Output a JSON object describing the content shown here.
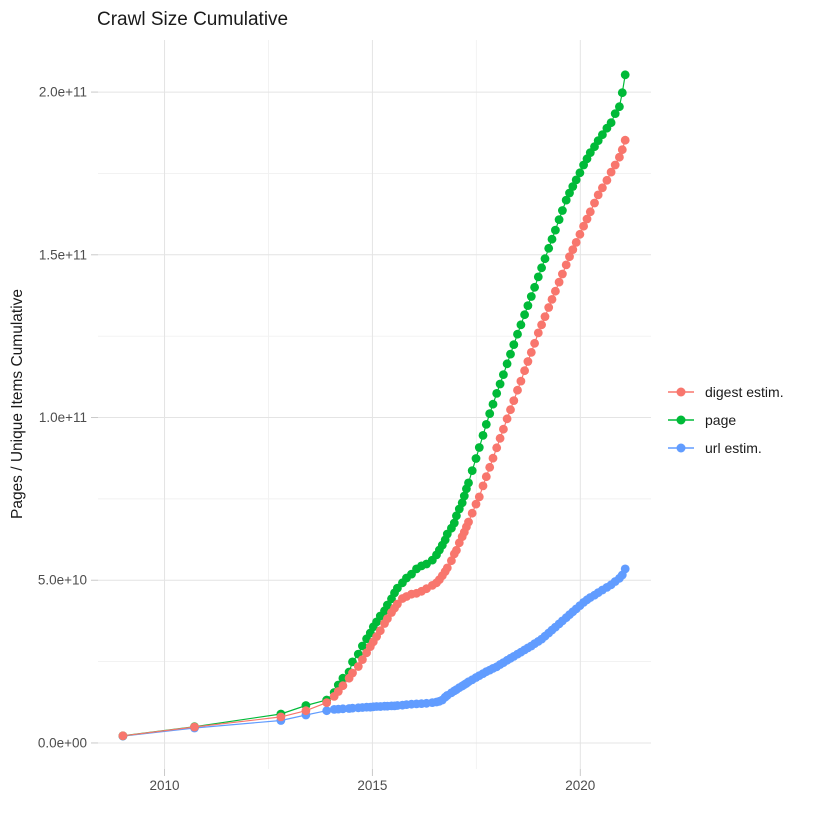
{
  "title": "Crawl Size Cumulative",
  "axes": {
    "y_label": "Pages / Unique Items Cumulative",
    "x_tick_values": [
      2010,
      2015,
      2020
    ],
    "x_tick_labels": [
      "2010",
      "2015",
      "2020"
    ],
    "x_minor_values": [
      2012.5,
      2017.5
    ],
    "y_tick_values": [
      0,
      50000000000.0,
      100000000000.0,
      150000000000.0,
      200000000000.0
    ],
    "y_tick_labels": [
      "0.0e+00",
      "5.0e+10",
      "1.0e+11",
      "1.5e+11",
      "2.0e+11"
    ],
    "y_minor_values": [
      25000000000.0,
      75000000000.0,
      125000000000.0,
      175000000000.0
    ]
  },
  "legend": {
    "entries": [
      {
        "label": "digest estim.",
        "color": "#F8766D"
      },
      {
        "label": "page",
        "color": "#00BA38"
      },
      {
        "label": "url estim.",
        "color": "#619CFF"
      }
    ]
  },
  "chart_data": {
    "type": "line",
    "title": "Crawl Size Cumulative",
    "xlabel": "",
    "ylabel": "Pages / Unique Items Cumulative",
    "x_unit": "year",
    "xlim": [
      2008.4,
      2021.7
    ],
    "ylim": [
      -8000000000.0,
      216000000000.0
    ],
    "grid": true,
    "legend_position": "right",
    "marker": "point",
    "x": [
      2009.0,
      2010.72,
      2012.8,
      2013.4,
      2013.9,
      2014.08,
      2014.18,
      2014.29,
      2014.44,
      2014.52,
      2014.66,
      2014.76,
      2014.86,
      2014.95,
      2015.02,
      2015.1,
      2015.19,
      2015.29,
      2015.36,
      2015.46,
      2015.53,
      2015.6,
      2015.72,
      2015.82,
      2015.94,
      2016.06,
      2016.18,
      2016.3,
      2016.44,
      2016.54,
      2016.61,
      2016.68,
      2016.75,
      2016.8,
      2016.9,
      2016.97,
      2017.02,
      2017.09,
      2017.16,
      2017.21,
      2017.26,
      2017.31,
      2017.4,
      2017.49,
      2017.57,
      2017.66,
      2017.74,
      2017.82,
      2017.9,
      2017.99,
      2018.07,
      2018.15,
      2018.24,
      2018.32,
      2018.4,
      2018.49,
      2018.57,
      2018.66,
      2018.74,
      2018.82,
      2018.9,
      2018.99,
      2019.07,
      2019.15,
      2019.24,
      2019.32,
      2019.4,
      2019.49,
      2019.57,
      2019.66,
      2019.74,
      2019.82,
      2019.9,
      2019.99,
      2020.08,
      2020.16,
      2020.24,
      2020.34,
      2020.43,
      2020.53,
      2020.64,
      2020.74,
      2020.84,
      2020.94,
      2021.01,
      2021.08
    ],
    "series": [
      {
        "name": "digest estim.",
        "color": "#F8766D",
        "values": [
          2200000000.0,
          4900000000.0,
          8000000000.0,
          9900000000.0,
          12400000000.0,
          14300000000.0,
          15800000000.0,
          17600000000.0,
          19900000000.0,
          21500000000.0,
          23500000000.0,
          25600000000.0,
          27700000000.0,
          29600000000.0,
          31100000000.0,
          32700000000.0,
          34500000000.0,
          36700000000.0,
          38200000000.0,
          40100000000.0,
          41400000000.0,
          42700000000.0,
          44400000000.0,
          45000000000.0,
          45700000000.0,
          46000000000.0,
          46600000000.0,
          47400000000.0,
          48400000000.0,
          49200000000.0,
          50200000000.0,
          51400000000.0,
          52700000000.0,
          53800000000.0,
          56000000000.0,
          58100000000.0,
          59200000000.0,
          61500000000.0,
          63400000000.0,
          64800000000.0,
          66400000000.0,
          67900000000.0,
          70600000000.0,
          73400000000.0,
          75600000000.0,
          79000000000.0,
          81800000000.0,
          84700000000.0,
          87500000000.0,
          90700000000.0,
          93600000000.0,
          96400000000.0,
          99600000000.0,
          102400000000.0,
          105200000000.0,
          108400000000.0,
          111200000000.0,
          114400000000.0,
          117200000000.0,
          120000000000.0,
          122800000000.0,
          126000000000.0,
          128500000000.0,
          131000000000.0,
          133800000000.0,
          136300000000.0,
          138800000000.0,
          141600000000.0,
          144100000000.0,
          146900000000.0,
          149400000000.0,
          151600000000.0,
          153800000000.0,
          156300000000.0,
          158800000000.0,
          161000000000.0,
          163200000000.0,
          165900000000.0,
          168400000000.0,
          170600000000.0,
          172900000000.0,
          175400000000.0,
          177600000000.0,
          180000000000.0,
          182300000000.0,
          185200000000.0
        ]
      },
      {
        "name": "page",
        "color": "#00BA38",
        "values": [
          2200000000.0,
          5000000000.0,
          8900000000.0,
          11500000000.0,
          13200000000.0,
          15500000000.0,
          17800000000.0,
          19900000000.0,
          21800000000.0,
          24900000000.0,
          27300000000.0,
          29800000000.0,
          32000000000.0,
          33800000000.0,
          35700000000.0,
          37200000000.0,
          39000000000.0,
          40600000000.0,
          42400000000.0,
          44300000000.0,
          46100000000.0,
          47600000000.0,
          49200000000.0,
          50700000000.0,
          51900000000.0,
          53500000000.0,
          54400000000.0,
          55000000000.0,
          56200000000.0,
          57800000000.0,
          59300000000.0,
          60800000000.0,
          62400000000.0,
          64200000000.0,
          66000000000.0,
          67600000000.0,
          69800000000.0,
          71900000000.0,
          73800000000.0,
          75900000000.0,
          78100000000.0,
          79900000000.0,
          83700000000.0,
          87400000000.0,
          90800000000.0,
          94500000000.0,
          97900000000.0,
          101200000000.0,
          104100000000.0,
          107400000000.0,
          110300000000.0,
          113200000000.0,
          116500000000.0,
          119500000000.0,
          122400000000.0,
          125600000000.0,
          128500000000.0,
          131600000000.0,
          134400000000.0,
          137200000000.0,
          140000000000.0,
          143200000000.0,
          146000000000.0,
          148800000000.0,
          152000000000.0,
          154800000000.0,
          157600000000.0,
          160800000000.0,
          163600000000.0,
          166800000000.0,
          169000000000.0,
          171000000000.0,
          173000000000.0,
          175200000000.0,
          177600000000.0,
          179500000000.0,
          181400000000.0,
          183200000000.0,
          185100000000.0,
          186900000000.0,
          188900000000.0,
          190600000000.0,
          193400000000.0,
          195500000000.0,
          199800000000.0,
          205300000000.0
        ]
      },
      {
        "name": "url estim.",
        "color": "#619CFF",
        "values": [
          2100000000.0,
          4600000000.0,
          6900000000.0,
          8600000000.0,
          9900000000.0,
          10300000000.0,
          10400000000.0,
          10500000000.0,
          10600000000.0,
          10700000000.0,
          10800000000.0,
          10900000000.0,
          11000000000.0,
          11000000000.0,
          11100000000.0,
          11200000000.0,
          11200000000.0,
          11300000000.0,
          11300000000.0,
          11400000000.0,
          11400000000.0,
          11500000000.0,
          11600000000.0,
          11800000000.0,
          11900000000.0,
          12000000000.0,
          12100000000.0,
          12200000000.0,
          12400000000.0,
          12600000000.0,
          12800000000.0,
          13200000000.0,
          14100000000.0,
          14600000000.0,
          15400000000.0,
          16000000000.0,
          16400000000.0,
          17000000000.0,
          17500000000.0,
          17900000000.0,
          18300000000.0,
          18800000000.0,
          19400000000.0,
          20100000000.0,
          20700000000.0,
          21300000000.0,
          21900000000.0,
          22400000000.0,
          22900000000.0,
          23400000000.0,
          24100000000.0,
          24700000000.0,
          25400000000.0,
          26000000000.0,
          26600000000.0,
          27300000000.0,
          27900000000.0,
          28600000000.0,
          29200000000.0,
          29800000000.0,
          30500000000.0,
          31200000000.0,
          31900000000.0,
          32800000000.0,
          33800000000.0,
          34700000000.0,
          35600000000.0,
          36600000000.0,
          37500000000.0,
          38500000000.0,
          39400000000.0,
          40300000000.0,
          41200000000.0,
          42200000000.0,
          43200000000.0,
          44000000000.0,
          44700000000.0,
          45400000000.0,
          46200000000.0,
          47000000000.0,
          47800000000.0,
          48600000000.0,
          49600000000.0,
          50600000000.0,
          51600000000.0,
          53500000000.0
        ]
      }
    ]
  }
}
